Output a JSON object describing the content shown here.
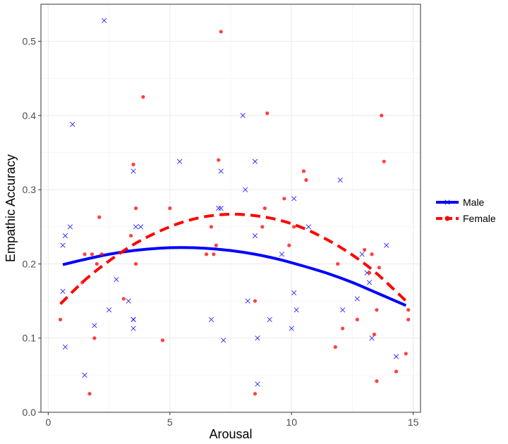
{
  "chart_data": {
    "type": "scatter",
    "xlabel": "Arousal",
    "ylabel": "Empathic Accuracy",
    "xlim": [
      -0.3,
      15.3
    ],
    "ylim": [
      0,
      0.55
    ],
    "xticks": [
      0,
      5,
      10,
      15
    ],
    "xtick_labels": [
      "0",
      "5",
      "10",
      "15"
    ],
    "yticks": [
      0.0,
      0.1,
      0.2,
      0.3,
      0.4,
      0.5
    ],
    "ytick_labels": [
      "0.0",
      "0.1",
      "0.2",
      "0.3",
      "0.4",
      "0.5"
    ],
    "grid": true,
    "legend_position": "right",
    "series": [
      {
        "name": "Male",
        "color": "#0000ff",
        "marker": "x",
        "line_style": "solid",
        "fit_points": [
          [
            0.6,
            0.199
          ],
          [
            1.5,
            0.206
          ],
          [
            2.5,
            0.213
          ],
          [
            3.5,
            0.218
          ],
          [
            4.5,
            0.221
          ],
          [
            5.5,
            0.222
          ],
          [
            6.5,
            0.221
          ],
          [
            7.5,
            0.218
          ],
          [
            8.5,
            0.213
          ],
          [
            9.5,
            0.206
          ],
          [
            10.5,
            0.197
          ],
          [
            11.5,
            0.187
          ],
          [
            12.5,
            0.175
          ],
          [
            13.5,
            0.161
          ],
          [
            14.7,
            0.144
          ]
        ],
        "points": [
          [
            0.6,
            0.163
          ],
          [
            0.6,
            0.225
          ],
          [
            0.7,
            0.238
          ],
          [
            0.7,
            0.088
          ],
          [
            0.9,
            0.25
          ],
          [
            1.0,
            0.388
          ],
          [
            1.5,
            0.05
          ],
          [
            1.9,
            0.117
          ],
          [
            2.3,
            0.528
          ],
          [
            2.5,
            0.138
          ],
          [
            2.8,
            0.179
          ],
          [
            3.3,
            0.15
          ],
          [
            3.5,
            0.125
          ],
          [
            3.5,
            0.125
          ],
          [
            3.5,
            0.113
          ],
          [
            3.5,
            0.325
          ],
          [
            3.6,
            0.25
          ],
          [
            3.8,
            0.25
          ],
          [
            5.4,
            0.338
          ],
          [
            6.7,
            0.125
          ],
          [
            7.0,
            0.275
          ],
          [
            7.1,
            0.275
          ],
          [
            7.1,
            0.325
          ],
          [
            7.2,
            0.097
          ],
          [
            8.0,
            0.4
          ],
          [
            8.1,
            0.3
          ],
          [
            8.2,
            0.15
          ],
          [
            8.5,
            0.338
          ],
          [
            8.5,
            0.238
          ],
          [
            8.6,
            0.1
          ],
          [
            8.6,
            0.038
          ],
          [
            9.1,
            0.125
          ],
          [
            9.6,
            0.213
          ],
          [
            10.0,
            0.113
          ],
          [
            10.1,
            0.288
          ],
          [
            10.1,
            0.161
          ],
          [
            10.2,
            0.138
          ],
          [
            10.7,
            0.25
          ],
          [
            12.0,
            0.313
          ],
          [
            12.1,
            0.138
          ],
          [
            12.7,
            0.153
          ],
          [
            12.9,
            0.213
          ],
          [
            13.1,
            0.188
          ],
          [
            13.2,
            0.175
          ],
          [
            13.3,
            0.1
          ],
          [
            13.9,
            0.225
          ],
          [
            14.3,
            0.075
          ]
        ]
      },
      {
        "name": "Female",
        "color": "#ff0000",
        "marker": "circle",
        "line_style": "dashed",
        "fit_points": [
          [
            0.5,
            0.146
          ],
          [
            1.5,
            0.178
          ],
          [
            2.5,
            0.204
          ],
          [
            3.5,
            0.226
          ],
          [
            4.5,
            0.243
          ],
          [
            5.5,
            0.256
          ],
          [
            6.5,
            0.264
          ],
          [
            7.5,
            0.267
          ],
          [
            8.5,
            0.265
          ],
          [
            9.5,
            0.259
          ],
          [
            10.5,
            0.248
          ],
          [
            11.5,
            0.232
          ],
          [
            12.5,
            0.212
          ],
          [
            13.5,
            0.187
          ],
          [
            14.8,
            0.147
          ]
        ],
        "points": [
          [
            0.5,
            0.125
          ],
          [
            1.4,
            0.175
          ],
          [
            1.5,
            0.213
          ],
          [
            1.7,
            0.025
          ],
          [
            1.8,
            0.213
          ],
          [
            1.9,
            0.1
          ],
          [
            2.0,
            0.2
          ],
          [
            2.1,
            0.263
          ],
          [
            2.2,
            0.213
          ],
          [
            3.1,
            0.153
          ],
          [
            3.4,
            0.238
          ],
          [
            3.5,
            0.334
          ],
          [
            3.6,
            0.275
          ],
          [
            3.6,
            0.2
          ],
          [
            3.9,
            0.425
          ],
          [
            4.7,
            0.097
          ],
          [
            5.0,
            0.275
          ],
          [
            6.5,
            0.213
          ],
          [
            6.7,
            0.25
          ],
          [
            6.8,
            0.213
          ],
          [
            6.9,
            0.225
          ],
          [
            7.0,
            0.34
          ],
          [
            7.1,
            0.513
          ],
          [
            8.5,
            0.15
          ],
          [
            8.5,
            0.025
          ],
          [
            8.8,
            0.25
          ],
          [
            8.9,
            0.275
          ],
          [
            9.0,
            0.403
          ],
          [
            9.7,
            0.288
          ],
          [
            9.9,
            0.225
          ],
          [
            10.1,
            0.25
          ],
          [
            10.5,
            0.325
          ],
          [
            10.6,
            0.313
          ],
          [
            11.8,
            0.088
          ],
          [
            11.9,
            0.2
          ],
          [
            12.1,
            0.113
          ],
          [
            12.7,
            0.125
          ],
          [
            13.0,
            0.219
          ],
          [
            13.2,
            0.188
          ],
          [
            13.3,
            0.213
          ],
          [
            13.4,
            0.105
          ],
          [
            13.5,
            0.042
          ],
          [
            13.5,
            0.138
          ],
          [
            13.6,
            0.195
          ],
          [
            13.7,
            0.4
          ],
          [
            13.8,
            0.338
          ],
          [
            14.3,
            0.055
          ],
          [
            14.7,
            0.079
          ],
          [
            14.8,
            0.125
          ],
          [
            14.8,
            0.138
          ]
        ]
      }
    ]
  }
}
